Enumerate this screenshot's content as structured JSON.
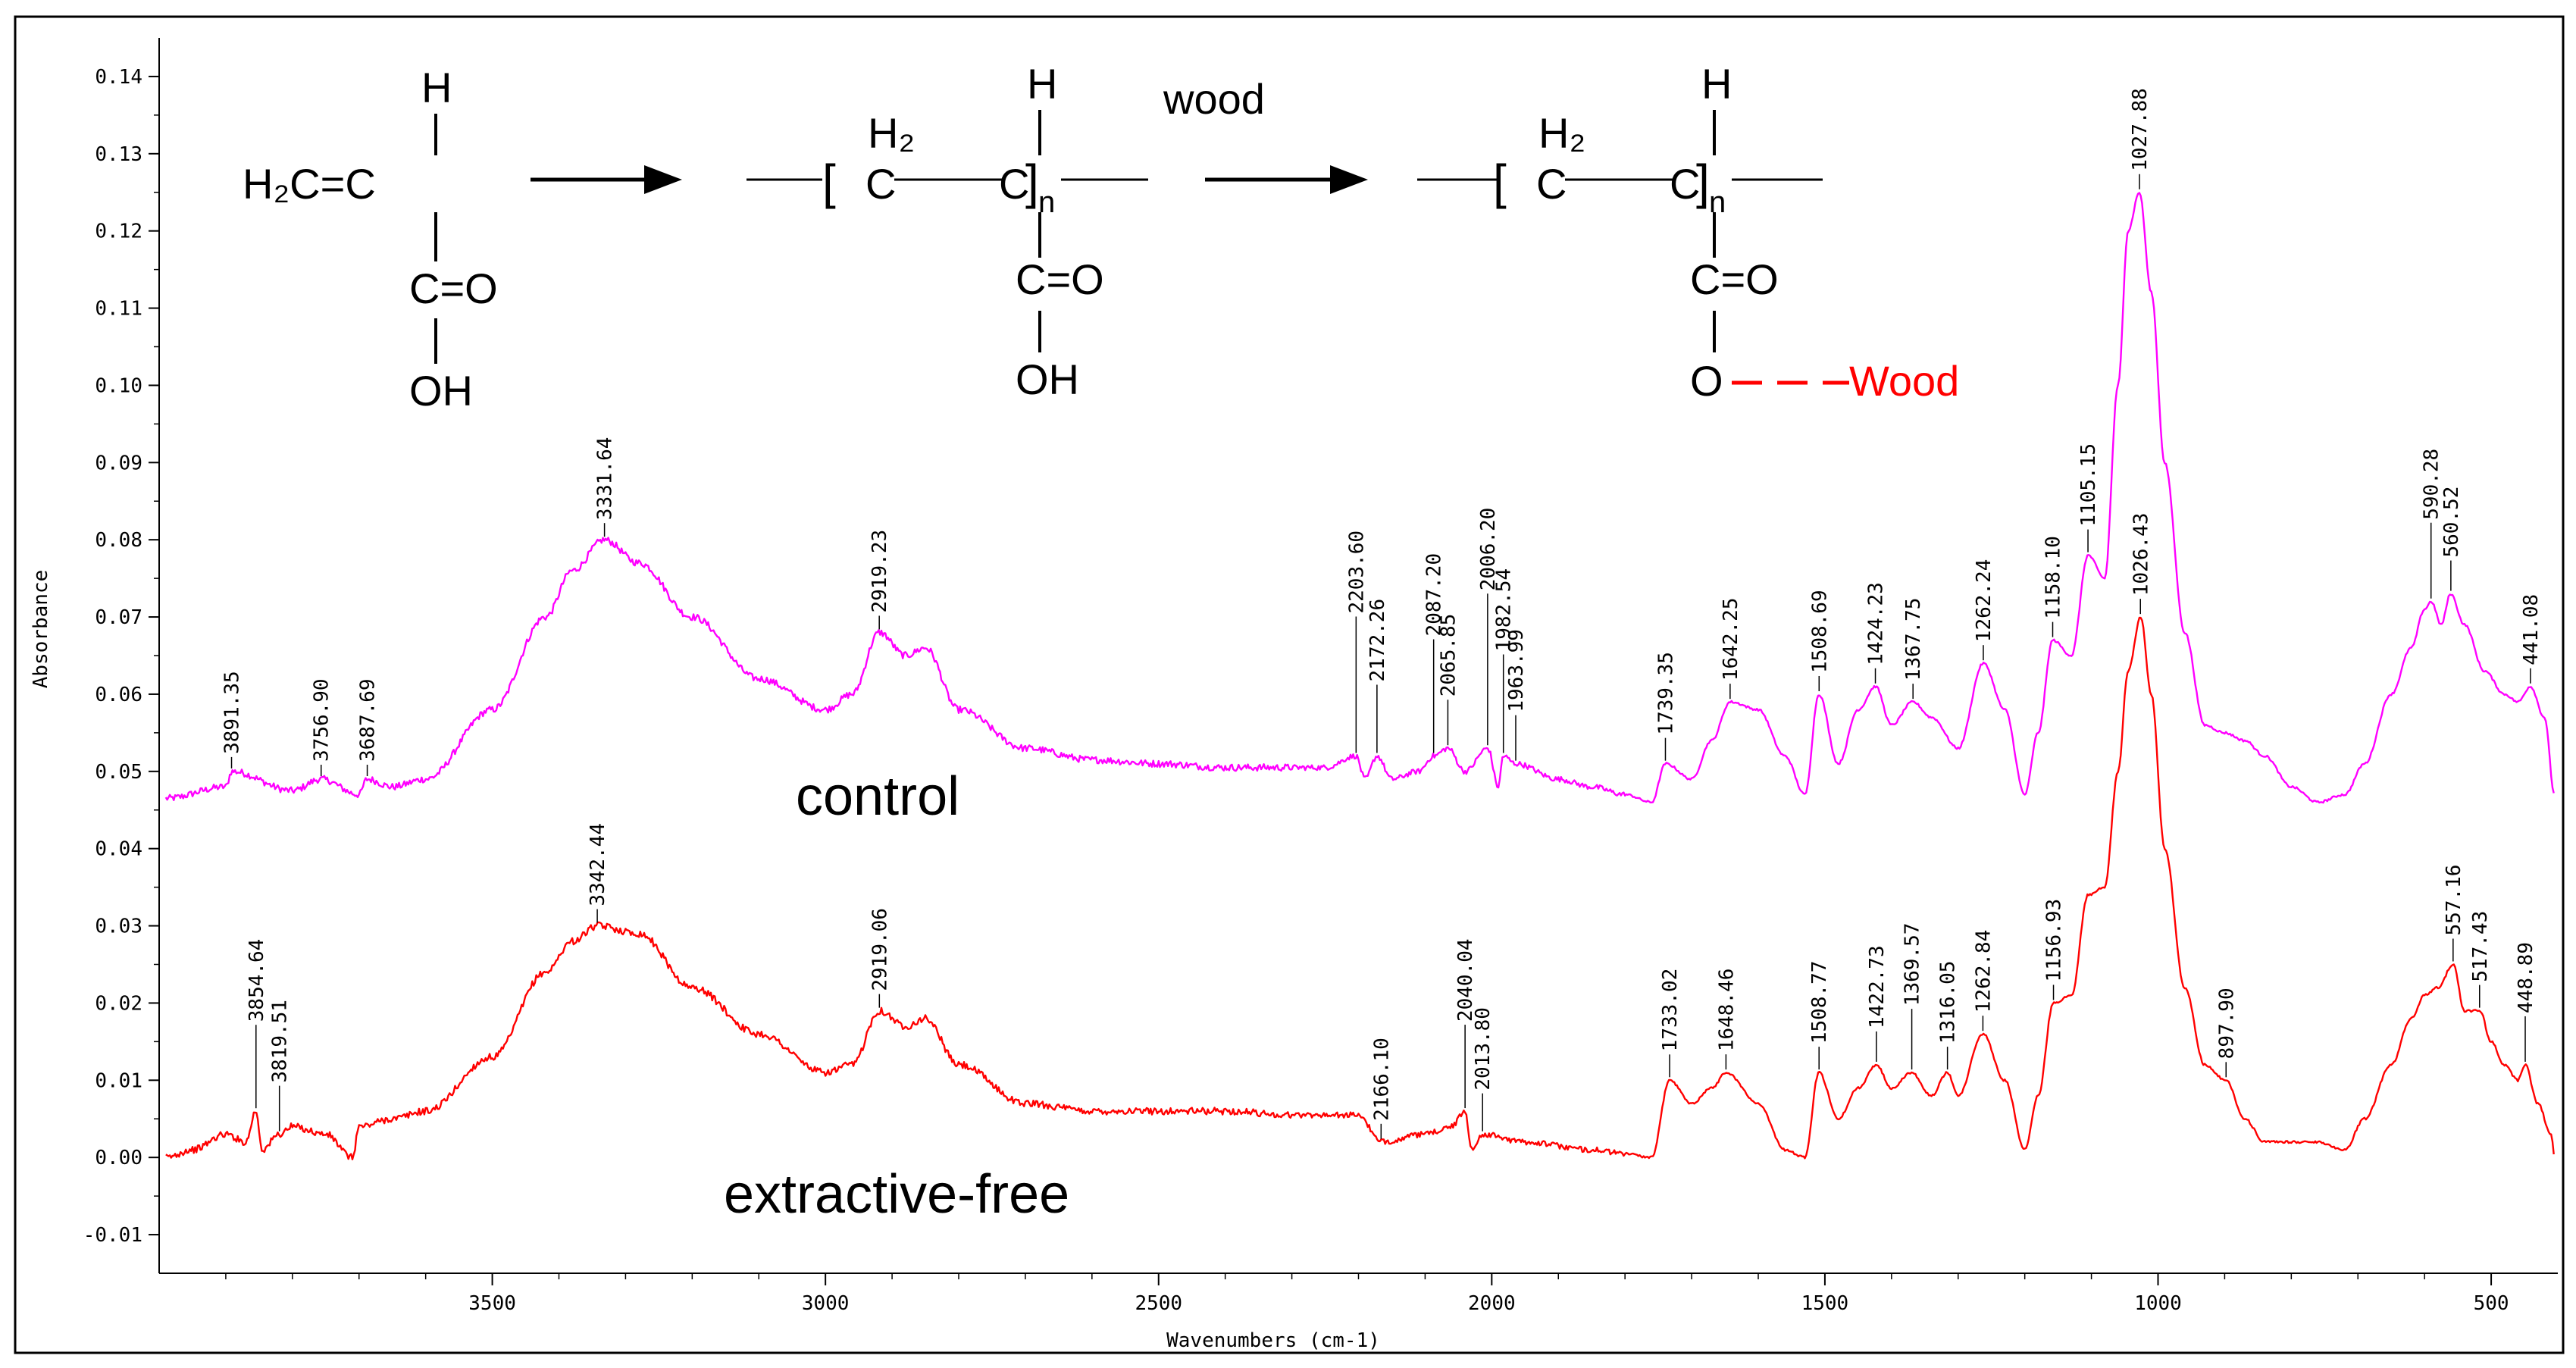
{
  "chart_data": {
    "type": "line",
    "xlabel": "Wavenumbers (cm-1)",
    "ylabel": "Absorbance",
    "xlim": [
      4000,
      400
    ],
    "ylim": [
      -0.015,
      0.145
    ],
    "x_reversed": true,
    "x_ticks": [
      "3500",
      "3000",
      "2500",
      "2000",
      "1500",
      "1000",
      "500"
    ],
    "y_ticks": [
      "-0.01",
      "0.00",
      "0.01",
      "0.02",
      "0.03",
      "0.04",
      "0.05",
      "0.06",
      "0.07",
      "0.08",
      "0.09",
      "0.10",
      "0.11",
      "0.12",
      "0.13",
      "0.14"
    ],
    "grid": false,
    "colors": {
      "control": "#ff00ff",
      "extractive_free": "#ff0000",
      "chem_red": "#ff0000"
    },
    "series": [
      {
        "name": "control",
        "x": [
          3990,
          3900,
          3891,
          3800,
          3757,
          3700,
          3688,
          3650,
          3600,
          3500,
          3420,
          3380,
          3332,
          3280,
          3200,
          3100,
          3000,
          2960,
          2919,
          2880,
          2850,
          2800,
          2700,
          2600,
          2500,
          2400,
          2300,
          2250,
          2204,
          2190,
          2172,
          2150,
          2110,
          2087,
          2066,
          2040,
          2006,
          1990,
          1983,
          1964,
          1900,
          1850,
          1800,
          1760,
          1739,
          1700,
          1670,
          1642,
          1600,
          1560,
          1530,
          1509,
          1480,
          1450,
          1424,
          1400,
          1368,
          1340,
          1300,
          1262,
          1230,
          1200,
          1180,
          1158,
          1130,
          1105,
          1080,
          1060,
          1045,
          1028,
          1010,
          990,
          960,
          930,
          900,
          870,
          840,
          800,
          760,
          720,
          690,
          650,
          620,
          600,
          590,
          575,
          561,
          540,
          510,
          480,
          460,
          441,
          420,
          405
        ],
        "y": [
          0.0465,
          0.048,
          0.05,
          0.0475,
          0.049,
          0.047,
          0.049,
          0.048,
          0.049,
          0.058,
          0.07,
          0.076,
          0.08,
          0.077,
          0.07,
          0.062,
          0.058,
          0.06,
          0.068,
          0.065,
          0.066,
          0.058,
          0.053,
          0.0515,
          0.051,
          0.0505,
          0.0505,
          0.0505,
          0.052,
          0.049,
          0.052,
          0.049,
          0.05,
          0.052,
          0.053,
          0.05,
          0.053,
          0.048,
          0.052,
          0.051,
          0.049,
          0.048,
          0.047,
          0.046,
          0.051,
          0.049,
          0.054,
          0.059,
          0.058,
          0.052,
          0.047,
          0.06,
          0.051,
          0.058,
          0.061,
          0.056,
          0.059,
          0.057,
          0.053,
          0.064,
          0.058,
          0.047,
          0.055,
          0.067,
          0.065,
          0.078,
          0.075,
          0.1,
          0.12,
          0.125,
          0.112,
          0.09,
          0.068,
          0.056,
          0.055,
          0.054,
          0.052,
          0.048,
          0.046,
          0.047,
          0.051,
          0.06,
          0.066,
          0.071,
          0.072,
          0.069,
          0.073,
          0.069,
          0.063,
          0.06,
          0.059,
          0.061,
          0.057,
          0.047
        ]
      },
      {
        "name": "extractive-free",
        "x": [
          3990,
          3950,
          3900,
          3870,
          3855,
          3845,
          3820,
          3800,
          3750,
          3710,
          3700,
          3650,
          3600,
          3500,
          3420,
          3380,
          3342,
          3280,
          3200,
          3100,
          3000,
          2960,
          2919,
          2880,
          2850,
          2800,
          2700,
          2600,
          2500,
          2400,
          2300,
          2200,
          2166,
          2100,
          2060,
          2040,
          2030,
          2014,
          1950,
          1850,
          1800,
          1760,
          1733,
          1700,
          1670,
          1648,
          1600,
          1560,
          1530,
          1509,
          1480,
          1450,
          1423,
          1400,
          1370,
          1340,
          1316,
          1300,
          1263,
          1230,
          1200,
          1180,
          1157,
          1130,
          1105,
          1080,
          1060,
          1045,
          1026,
          1010,
          990,
          960,
          930,
          898,
          870,
          840,
          800,
          760,
          720,
          690,
          650,
          620,
          600,
          580,
          557,
          540,
          517,
          500,
          480,
          460,
          449,
          430,
          410,
          405
        ],
        "y": [
          0.0,
          0.001,
          0.003,
          0.002,
          0.006,
          0.001,
          0.003,
          0.004,
          0.003,
          0.0,
          0.004,
          0.005,
          0.006,
          0.013,
          0.024,
          0.028,
          0.03,
          0.029,
          0.022,
          0.016,
          0.011,
          0.012,
          0.019,
          0.017,
          0.018,
          0.012,
          0.007,
          0.006,
          0.006,
          0.006,
          0.0055,
          0.0055,
          0.002,
          0.003,
          0.004,
          0.006,
          0.001,
          0.003,
          0.002,
          0.001,
          0.0005,
          0.0,
          0.01,
          0.007,
          0.009,
          0.011,
          0.007,
          0.001,
          0.0,
          0.011,
          0.005,
          0.009,
          0.012,
          0.009,
          0.011,
          0.008,
          0.011,
          0.008,
          0.016,
          0.01,
          0.001,
          0.008,
          0.02,
          0.021,
          0.034,
          0.035,
          0.05,
          0.063,
          0.07,
          0.06,
          0.04,
          0.022,
          0.012,
          0.01,
          0.005,
          0.002,
          0.002,
          0.002,
          0.001,
          0.005,
          0.012,
          0.018,
          0.021,
          0.022,
          0.025,
          0.019,
          0.019,
          0.015,
          0.012,
          0.01,
          0.012,
          0.007,
          0.003,
          0.0
        ]
      }
    ],
    "peak_labels_control": [
      "3891.35",
      "3756.90",
      "3687.69",
      "3331.64",
      "2919.23",
      "2203.60",
      "2172.26",
      "2087.20",
      "2065.85",
      "2006.20",
      "1982.54",
      "1963.99",
      "1739.35",
      "1642.25",
      "1508.69",
      "1424.23",
      "1367.75",
      "1262.24",
      "1158.10",
      "1105.15",
      "1027.88",
      "590.28",
      "560.52",
      "441.08"
    ],
    "peak_labels_extractive_free": [
      "3854.64",
      "3819.51",
      "3342.44",
      "2919.06",
      "2166.10",
      "2040.04",
      "2013.80",
      "1733.02",
      "1648.46",
      "1508.77",
      "1422.73",
      "1369.57",
      "1316.05",
      "1262.84",
      "1156.93",
      "1026.43",
      "897.90",
      "557.16",
      "517.43",
      "448.89"
    ],
    "annotations": {
      "control_label": "control",
      "extractive_free_label": "extractive-free",
      "scheme": {
        "monomer_h": "H",
        "monomer_left": "H₂C=C",
        "co": "C=O",
        "oh": "OH",
        "h2": "H₂",
        "c": "C",
        "n": "n",
        "reagent": "wood",
        "ester_o": "O",
        "wood_bond": "Wood"
      }
    }
  }
}
